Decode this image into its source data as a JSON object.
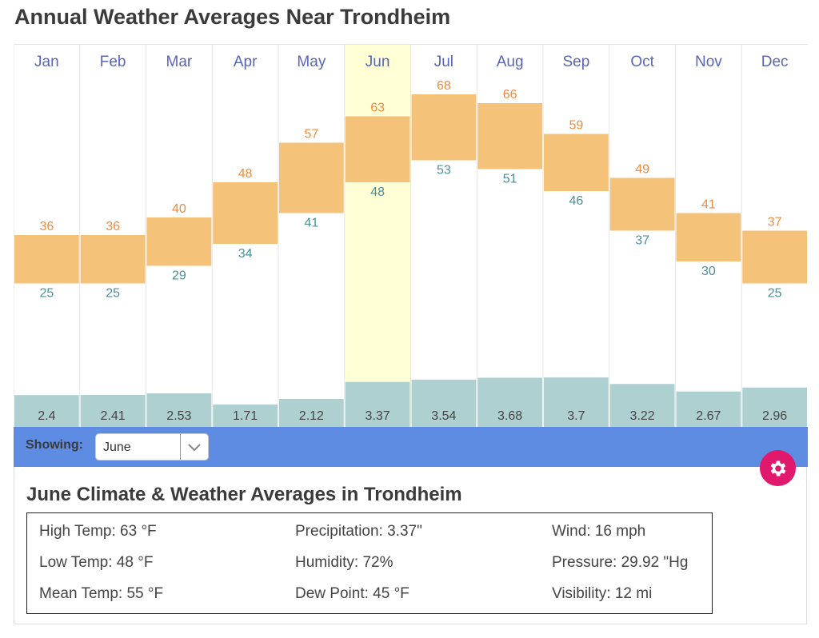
{
  "page": {
    "title": "Annual Weather Averages Near Trondheim"
  },
  "controls": {
    "showing_label": "Showing:",
    "selected_month": "June",
    "dropdown_icon": "chevron-down-icon",
    "settings_icon": "gear-icon"
  },
  "colors": {
    "temp_bar": "#f5c27a",
    "high_label": "#f28a3c",
    "low_label": "#4a8f9a",
    "precip_bar": "#afd0d1",
    "highlight": "#ffffd6",
    "month_label": "#5965b7",
    "strip": "#5e8ce3",
    "settings_button": "#e0196c"
  },
  "details": {
    "title": "June Climate & Weather Averages in Trondheim",
    "stats": [
      [
        "High Temp: 63 °F",
        "Precipitation: 3.37\"",
        "Wind: 16 mph"
      ],
      [
        "Low Temp: 48 °F",
        "Humidity: 72%",
        "Pressure: 29.92 \"Hg"
      ],
      [
        "Mean Temp: 55 °F",
        "Dew Point: 45 °F",
        "Visibility: 12 mi"
      ]
    ]
  },
  "chart_data": {
    "type": "bar",
    "title": "Annual Weather Averages Near Trondheim",
    "categories": [
      "Jan",
      "Feb",
      "Mar",
      "Apr",
      "May",
      "Jun",
      "Jul",
      "Aug",
      "Sep",
      "Oct",
      "Nov",
      "Dec"
    ],
    "highlighted_category": "Jun",
    "series": [
      {
        "name": "High Temp (°F)",
        "values": [
          36,
          36,
          40,
          48,
          57,
          63,
          68,
          66,
          59,
          49,
          41,
          37
        ]
      },
      {
        "name": "Low Temp (°F)",
        "values": [
          25,
          25,
          29,
          34,
          41,
          48,
          53,
          51,
          46,
          37,
          30,
          25
        ]
      },
      {
        "name": "Precipitation (in)",
        "values": [
          2.4,
          2.41,
          2.53,
          1.71,
          2.12,
          3.37,
          3.54,
          3.68,
          3.7,
          3.22,
          2.67,
          2.96
        ]
      }
    ],
    "xlabel": "",
    "ylabel": "",
    "grid": true,
    "legend": "none"
  }
}
